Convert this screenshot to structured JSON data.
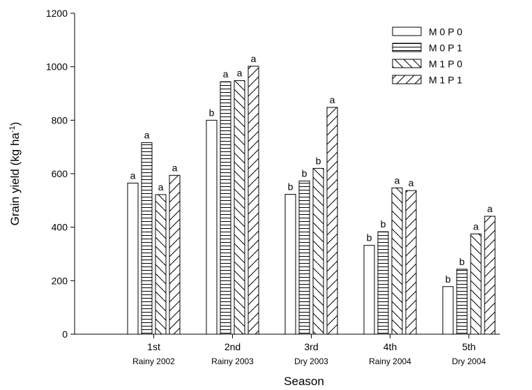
{
  "chart_data": {
    "type": "bar",
    "xlabel": "Season",
    "ylabel_main": "Grain yield (kg ha",
    "ylabel_sup": "-1",
    "ylabel_close": ")",
    "ylim": [
      0,
      1200
    ],
    "yticks": [
      0,
      200,
      400,
      600,
      800,
      1000,
      1200
    ],
    "grid": false,
    "legend_position": "top-right",
    "categories": [
      "1st",
      "2nd",
      "3rd",
      "4th",
      "5th"
    ],
    "subcategories": [
      "Rainy 2002",
      "Rainy 2003",
      "Dry 2003",
      "Rainy 2004",
      "Dry 2004"
    ],
    "series": [
      {
        "name": "M 0 P 0",
        "pattern": "plain",
        "values": [
          565,
          800,
          523,
          332,
          178
        ],
        "letters": [
          "a",
          "b",
          "b",
          "b",
          "b"
        ]
      },
      {
        "name": "M 0 P 1",
        "pattern": "horizontal",
        "values": [
          716,
          944,
          573,
          383,
          243
        ],
        "letters": [
          "a",
          "a",
          "b",
          "b",
          "b"
        ]
      },
      {
        "name": "M 1 P 0",
        "pattern": "backslash",
        "values": [
          522,
          948,
          620,
          547,
          375
        ],
        "letters": [
          "a",
          "a",
          "b",
          "a",
          "a"
        ]
      },
      {
        "name": "M 1 P 1",
        "pattern": "slash",
        "values": [
          594,
          1002,
          848,
          537,
          441
        ],
        "letters": [
          "a",
          "a",
          "a",
          "a",
          "a"
        ]
      }
    ],
    "colors": {
      "bar_fill": "#ffffff",
      "stroke": "#000000"
    }
  }
}
